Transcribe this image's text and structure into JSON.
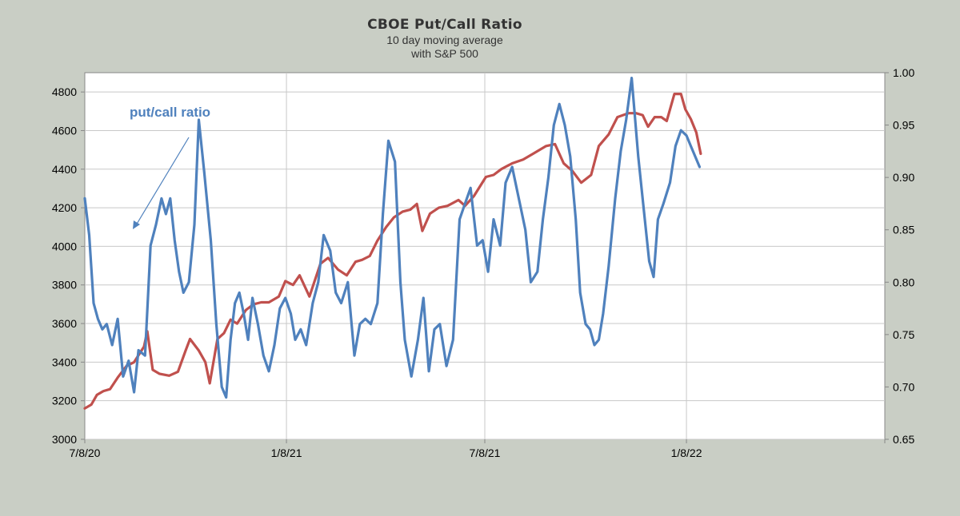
{
  "chart_data": {
    "type": "line",
    "title": "CBOE Put/Call Ratio",
    "subtitle_lines": [
      "10 day moving average",
      "with S&P 500"
    ],
    "xlabel": "",
    "ylabel": "",
    "x_ticks": [
      "7/8/20",
      "1/8/21",
      "7/8/21",
      "1/8/22"
    ],
    "x_range": [
      "2020-07-08",
      "2022-07-08"
    ],
    "y_left": {
      "range": [
        3000,
        4900
      ],
      "ticks": [
        3000,
        3200,
        3400,
        3600,
        3800,
        4000,
        4200,
        4400,
        4600,
        4800
      ]
    },
    "y_right": {
      "range": [
        0.65,
        1.0
      ],
      "ticks": [
        "0.65",
        "0.70",
        "0.75",
        "0.80",
        "0.85",
        "0.90",
        "0.95",
        "1.00"
      ]
    },
    "grid": true,
    "annotation": {
      "text": "put/call ratio",
      "color": "#4f81bd"
    },
    "colors": {
      "put_call": "#4f81bd",
      "spx": "#c0504d"
    },
    "series": [
      {
        "axis": "right",
        "color": "#4f81bd",
        "x": [
          "2020-07-08",
          "2020-07-12",
          "2020-07-16",
          "2020-07-20",
          "2020-07-24",
          "2020-07-28",
          "2020-08-02",
          "2020-08-07",
          "2020-08-12",
          "2020-08-17",
          "2020-08-22",
          "2020-08-26",
          "2020-09-01",
          "2020-09-06",
          "2020-09-11",
          "2020-09-16",
          "2020-09-20",
          "2020-09-24",
          "2020-09-28",
          "2020-10-02",
          "2020-10-06",
          "2020-10-11",
          "2020-10-16",
          "2020-10-20",
          "2020-10-25",
          "2020-10-31",
          "2020-11-05",
          "2020-11-10",
          "2020-11-14",
          "2020-11-18",
          "2020-11-22",
          "2020-11-26",
          "2020-11-30",
          "2020-12-04",
          "2020-12-08",
          "2020-12-13",
          "2020-12-18",
          "2020-12-23",
          "2020-12-28",
          "2021-01-02",
          "2021-01-07",
          "2021-01-12",
          "2021-01-16",
          "2021-01-21",
          "2021-01-26",
          "2021-02-01",
          "2021-02-06",
          "2021-02-11",
          "2021-02-17",
          "2021-02-22",
          "2021-02-27",
          "2021-03-05",
          "2021-03-11",
          "2021-03-16",
          "2021-03-21",
          "2021-03-26",
          "2021-04-01",
          "2021-04-06",
          "2021-04-11",
          "2021-04-17",
          "2021-04-22",
          "2021-04-26",
          "2021-05-02",
          "2021-05-08",
          "2021-05-13",
          "2021-05-18",
          "2021-05-23",
          "2021-05-28",
          "2021-06-03",
          "2021-06-09",
          "2021-06-15",
          "2021-06-20",
          "2021-06-25",
          "2021-07-01",
          "2021-07-06",
          "2021-07-11",
          "2021-07-16",
          "2021-07-22",
          "2021-07-27",
          "2021-08-02",
          "2021-08-08",
          "2021-08-14",
          "2021-08-19",
          "2021-08-25",
          "2021-08-30",
          "2021-09-04",
          "2021-09-09",
          "2021-09-14",
          "2021-09-19",
          "2021-09-24",
          "2021-09-29",
          "2021-10-03",
          "2021-10-08",
          "2021-10-12",
          "2021-10-16",
          "2021-10-20",
          "2021-10-24",
          "2021-10-29",
          "2021-11-04",
          "2021-11-09",
          "2021-11-14",
          "2021-11-19",
          "2021-11-25",
          "2021-12-01",
          "2021-12-05",
          "2021-12-09",
          "2021-12-13",
          "2021-12-18",
          "2021-12-24",
          "2021-12-29",
          "2022-01-03",
          "2022-01-08",
          "2022-01-12",
          "2022-01-16",
          "2022-01-20"
        ],
        "values": [
          0.88,
          0.845,
          0.78,
          0.765,
          0.755,
          0.76,
          0.74,
          0.765,
          0.71,
          0.725,
          0.695,
          0.735,
          0.73,
          0.835,
          0.855,
          0.88,
          0.865,
          0.88,
          0.84,
          0.81,
          0.79,
          0.8,
          0.855,
          0.955,
          0.905,
          0.84,
          0.76,
          0.7,
          0.69,
          0.745,
          0.78,
          0.79,
          0.77,
          0.745,
          0.785,
          0.76,
          0.73,
          0.715,
          0.74,
          0.775,
          0.785,
          0.77,
          0.745,
          0.755,
          0.74,
          0.78,
          0.8,
          0.845,
          0.83,
          0.79,
          0.78,
          0.8,
          0.73,
          0.76,
          0.765,
          0.76,
          0.78,
          0.865,
          0.935,
          0.915,
          0.8,
          0.745,
          0.71,
          0.745,
          0.785,
          0.715,
          0.755,
          0.76,
          0.72,
          0.745,
          0.86,
          0.875,
          0.89,
          0.835,
          0.84,
          0.81,
          0.86,
          0.835,
          0.895,
          0.91,
          0.88,
          0.85,
          0.8,
          0.81,
          0.86,
          0.9,
          0.95,
          0.97,
          0.95,
          0.92,
          0.86,
          0.79,
          0.76,
          0.755,
          0.74,
          0.745,
          0.77,
          0.815,
          0.88,
          0.925,
          0.955,
          0.995,
          0.92,
          0.86,
          0.82,
          0.805,
          0.86,
          0.875,
          0.895,
          0.93,
          0.945,
          0.94,
          0.93,
          0.92,
          0.91
        ]
      },
      {
        "axis": "left",
        "color": "#c0504d",
        "x": [
          "2020-07-08",
          "2020-07-14",
          "2020-07-19",
          "2020-07-25",
          "2020-07-31",
          "2020-08-07",
          "2020-08-15",
          "2020-08-22",
          "2020-08-31",
          "2020-09-03",
          "2020-09-08",
          "2020-09-14",
          "2020-09-23",
          "2020-10-01",
          "2020-10-08",
          "2020-10-12",
          "2020-10-20",
          "2020-10-26",
          "2020-10-30",
          "2020-11-06",
          "2020-11-12",
          "2020-11-18",
          "2020-11-24",
          "2020-12-02",
          "2020-12-09",
          "2020-12-16",
          "2020-12-23",
          "2021-01-01",
          "2021-01-07",
          "2021-01-14",
          "2021-01-20",
          "2021-01-29",
          "2021-02-08",
          "2021-02-15",
          "2021-02-24",
          "2021-03-04",
          "2021-03-12",
          "2021-03-18",
          "2021-03-25",
          "2021-04-01",
          "2021-04-09",
          "2021-04-16",
          "2021-04-24",
          "2021-05-01",
          "2021-05-07",
          "2021-05-12",
          "2021-05-19",
          "2021-05-27",
          "2021-06-04",
          "2021-06-14",
          "2021-06-20",
          "2021-06-28",
          "2021-07-09",
          "2021-07-16",
          "2021-07-23",
          "2021-08-02",
          "2021-08-12",
          "2021-08-21",
          "2021-09-02",
          "2021-09-10",
          "2021-09-18",
          "2021-09-26",
          "2021-10-04",
          "2021-10-13",
          "2021-10-20",
          "2021-10-29",
          "2021-11-06",
          "2021-11-16",
          "2021-11-23",
          "2021-11-29",
          "2021-12-04",
          "2021-12-10",
          "2021-12-16",
          "2021-12-21",
          "2021-12-28",
          "2022-01-03",
          "2022-01-07",
          "2022-01-12",
          "2022-01-17",
          "2022-01-21"
        ],
        "values": [
          3160,
          3180,
          3230,
          3250,
          3260,
          3320,
          3380,
          3400,
          3480,
          3560,
          3360,
          3340,
          3330,
          3350,
          3460,
          3520,
          3460,
          3400,
          3290,
          3520,
          3550,
          3620,
          3600,
          3670,
          3700,
          3710,
          3710,
          3740,
          3820,
          3800,
          3850,
          3740,
          3910,
          3940,
          3880,
          3850,
          3920,
          3930,
          3950,
          4030,
          4100,
          4150,
          4180,
          4190,
          4220,
          4080,
          4170,
          4200,
          4210,
          4240,
          4210,
          4260,
          4360,
          4370,
          4400,
          4430,
          4450,
          4480,
          4520,
          4530,
          4430,
          4390,
          4330,
          4370,
          4520,
          4580,
          4670,
          4690,
          4690,
          4680,
          4620,
          4670,
          4670,
          4650,
          4790,
          4790,
          4710,
          4660,
          4590,
          4480
        ]
      }
    ]
  }
}
